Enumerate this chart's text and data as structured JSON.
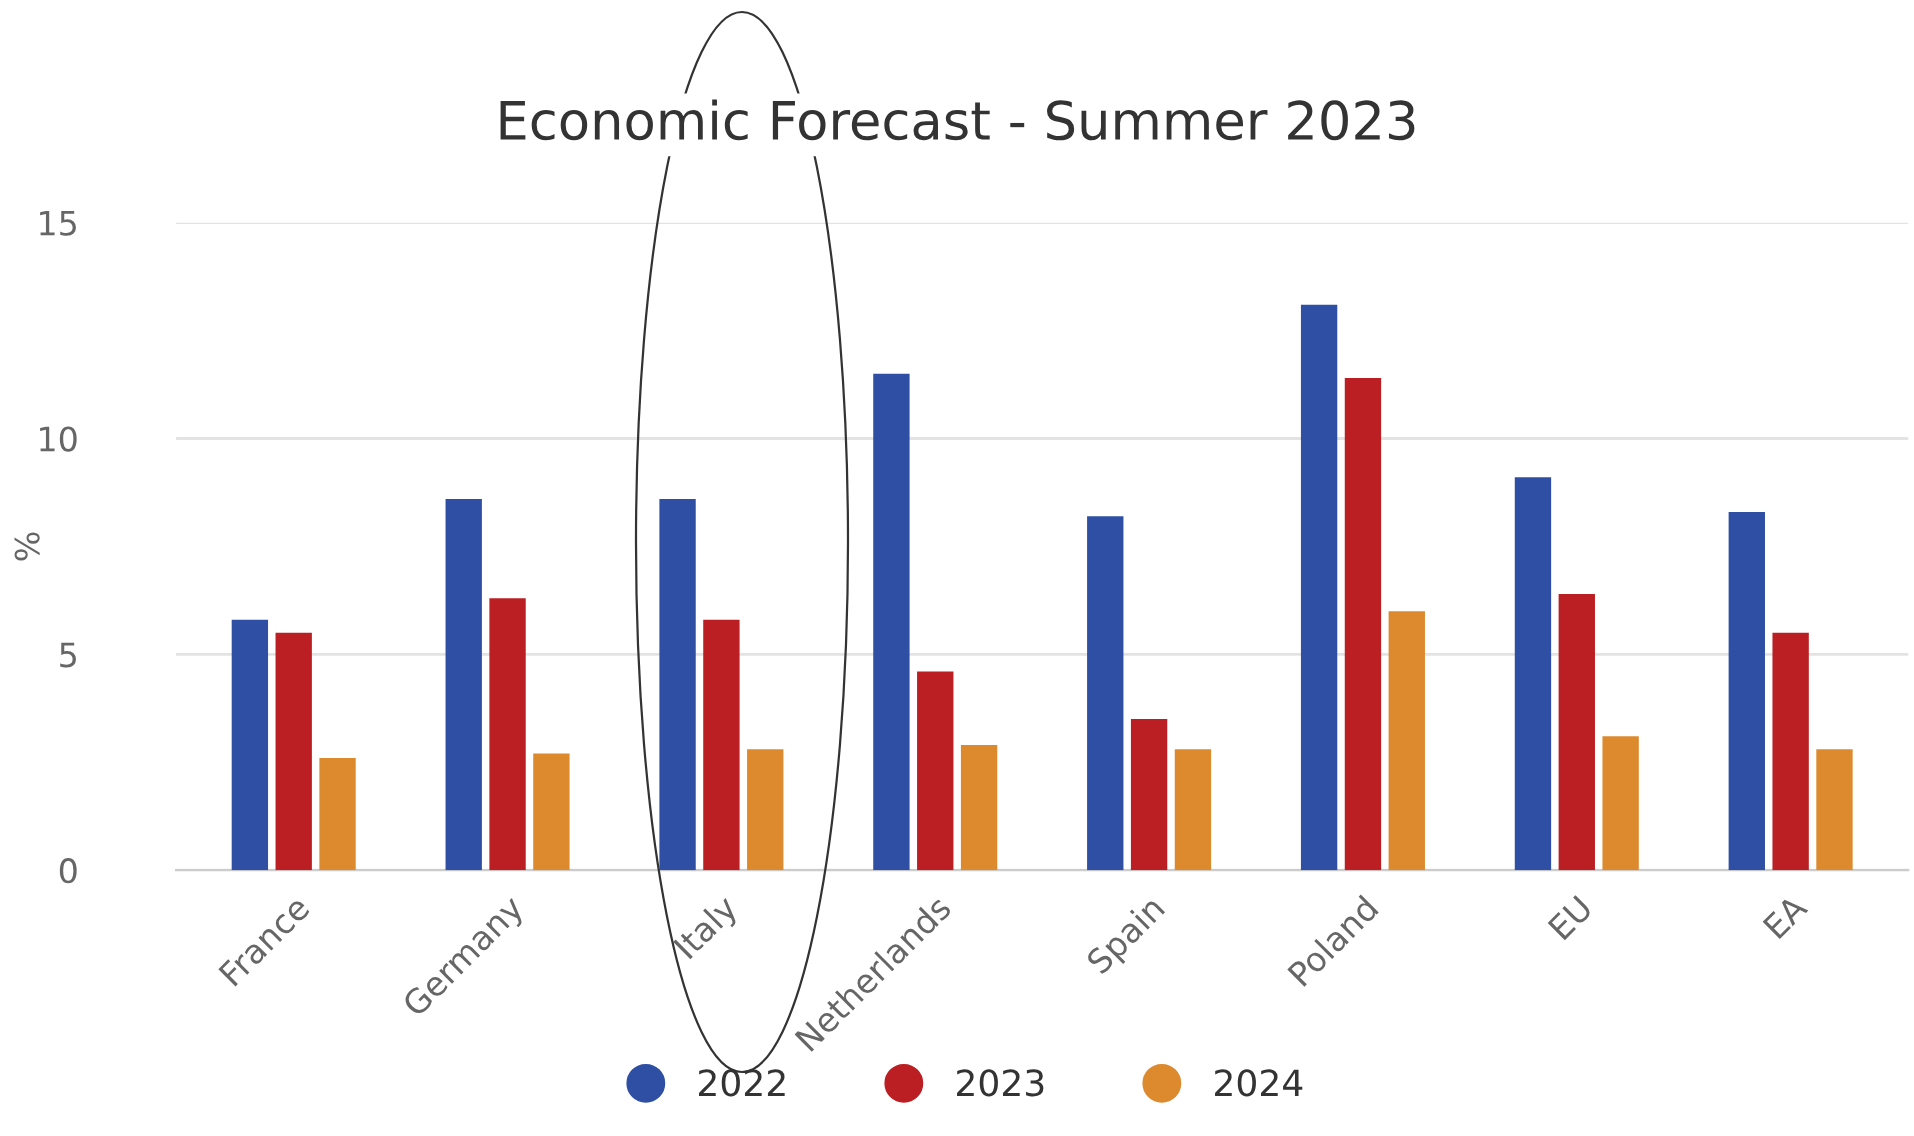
{
  "chart_data": {
    "type": "bar",
    "title": "Economic Forecast - Summer 2023",
    "ylabel": "%",
    "categories": [
      "France",
      "Germany",
      "Italy",
      "Netherlands",
      "Spain",
      "Poland",
      "EU",
      "EA"
    ],
    "series": [
      {
        "name": "2022",
        "color": "#2e4fa3",
        "values": [
          5.8,
          8.6,
          8.6,
          11.5,
          8.2,
          13.1,
          9.1,
          8.3
        ]
      },
      {
        "name": "2023",
        "color": "#bb1f23",
        "values": [
          5.5,
          6.3,
          5.8,
          4.6,
          3.5,
          11.4,
          6.4,
          5.5
        ]
      },
      {
        "name": "2024",
        "color": "#dd8a2e",
        "values": [
          2.6,
          2.7,
          2.8,
          2.9,
          2.8,
          6.0,
          3.1,
          2.8
        ]
      }
    ],
    "ylim": [
      0,
      15
    ],
    "yticks": [
      0,
      5,
      10,
      15
    ],
    "grid": "y",
    "legend": "bottom"
  }
}
